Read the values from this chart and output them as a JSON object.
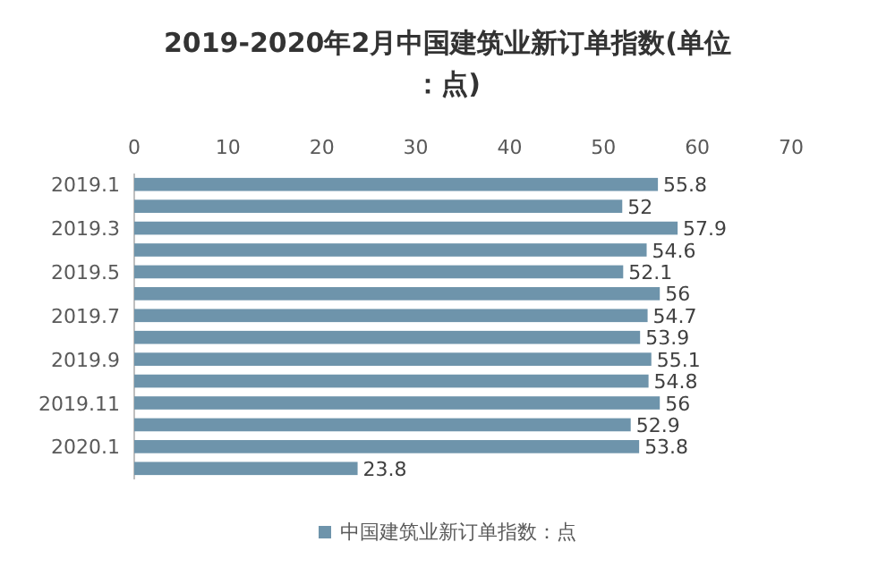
{
  "chart_data": {
    "type": "bar",
    "orientation": "horizontal",
    "title": "2019-2020年2月中国建筑业新订单指数(单位：点)",
    "categories": [
      "2019.1",
      null,
      "2019.3",
      null,
      "2019.5",
      null,
      "2019.7",
      null,
      "2019.9",
      null,
      "2019.11",
      null,
      "2020.1",
      null
    ],
    "series": [
      {
        "name": "中国建筑业新订单指数：点",
        "color": "#6e94ab",
        "values": [
          55.8,
          52,
          57.9,
          54.6,
          52.1,
          56,
          54.7,
          53.9,
          55.1,
          54.8,
          56,
          52.9,
          53.8,
          23.8
        ]
      }
    ],
    "xlim": [
      0,
      70
    ],
    "xticks": [
      0,
      10,
      20,
      30,
      40,
      50,
      60,
      70
    ],
    "data_labels": true,
    "legend": "bottom"
  }
}
